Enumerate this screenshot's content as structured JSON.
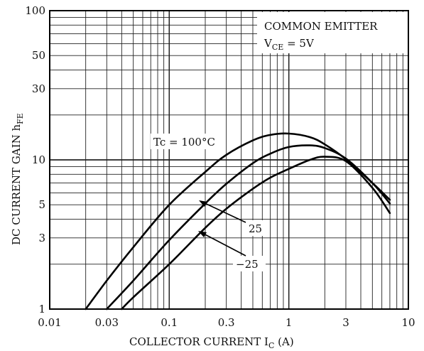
{
  "chart_data": {
    "type": "line",
    "xscale": "log",
    "yscale": "log",
    "xlim": [
      0.01,
      10
    ],
    "ylim": [
      1,
      100
    ],
    "x_ticks": [
      {
        "value": 0.01,
        "label": "0.01"
      },
      {
        "value": 0.03,
        "label": "0.03"
      },
      {
        "value": 0.1,
        "label": "0.1"
      },
      {
        "value": 0.3,
        "label": "0.3"
      },
      {
        "value": 1,
        "label": "1"
      },
      {
        "value": 3,
        "label": "3"
      },
      {
        "value": 10,
        "label": "10"
      }
    ],
    "y_ticks": [
      {
        "value": 1,
        "label": "1"
      },
      {
        "value": 3,
        "label": "3"
      },
      {
        "value": 5,
        "label": "5"
      },
      {
        "value": 10,
        "label": "10"
      },
      {
        "value": 30,
        "label": "30"
      },
      {
        "value": 50,
        "label": "50"
      },
      {
        "value": 100,
        "label": "100"
      }
    ],
    "xlabel": {
      "main": "COLLECTOR CURRENT  I",
      "sub": "C",
      "unit": "  (A)"
    },
    "ylabel": {
      "main": "DC CURRENT GAIN   h",
      "sub": "FE"
    },
    "annotation_box": {
      "line1": "COMMON EMITTER",
      "line2_main": "V",
      "line2_sub": "CE",
      "line2_rest": " = 5V"
    },
    "grid": true,
    "series": [
      {
        "name": "Tc = 100°C",
        "x": [
          0.02,
          0.03,
          0.05,
          0.1,
          0.2,
          0.3,
          0.5,
          0.7,
          1.0,
          1.5,
          2.0,
          3.0,
          5.0,
          7.0
        ],
        "y": [
          1.0,
          1.55,
          2.6,
          5.0,
          8.3,
          10.8,
          13.5,
          14.7,
          15.0,
          14.2,
          12.7,
          10.1,
          7.0,
          5.4
        ]
      },
      {
        "name": "25",
        "x": [
          0.03,
          0.05,
          0.1,
          0.2,
          0.3,
          0.5,
          0.7,
          1.0,
          1.5,
          2.0,
          3.0,
          5.0,
          7.0
        ],
        "y": [
          1.0,
          1.55,
          2.9,
          5.1,
          6.9,
          9.5,
          11.0,
          12.2,
          12.5,
          12.0,
          10.2,
          7.0,
          5.1
        ]
      },
      {
        "name": "−25",
        "x": [
          0.04,
          0.05,
          0.1,
          0.2,
          0.3,
          0.5,
          0.7,
          1.0,
          1.5,
          2.0,
          3.0,
          5.0,
          7.0
        ],
        "y": [
          1.0,
          1.2,
          2.0,
          3.5,
          4.7,
          6.4,
          7.6,
          8.7,
          10.0,
          10.5,
          9.8,
          6.5,
          4.4
        ]
      }
    ],
    "labels": {
      "tc100": "Tc = 100°C",
      "t25": "25",
      "tm25": "−25"
    }
  }
}
